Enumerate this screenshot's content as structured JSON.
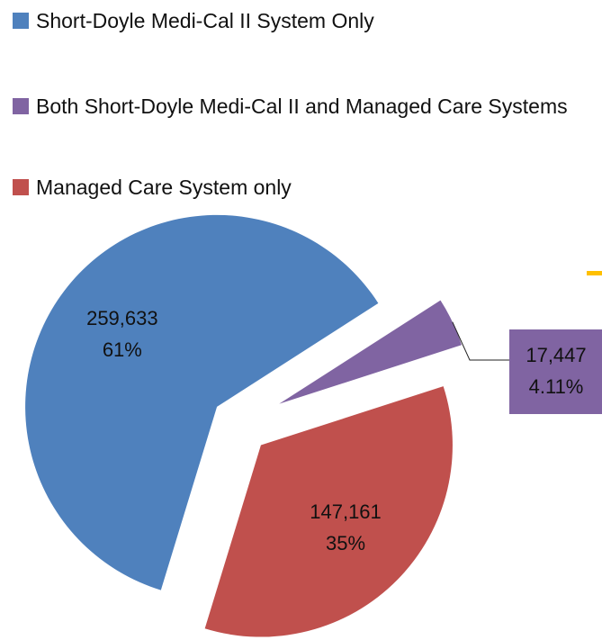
{
  "chart_data": {
    "type": "pie",
    "categories": [
      "Short-Doyle Medi-Cal II System Only",
      "Both Short-Doyle Medi-Cal II and Managed Care Systems",
      "Managed Care System only"
    ],
    "values": [
      259633,
      17447,
      147161
    ],
    "value_labels": [
      "259,633",
      "17,447",
      "147,161"
    ],
    "percents": [
      61,
      4.11,
      35
    ],
    "percent_labels": [
      "61%",
      "4.11%",
      "35%"
    ],
    "colors": [
      "#4f81bd",
      "#8064a2",
      "#c0504d"
    ],
    "legend": "top"
  }
}
